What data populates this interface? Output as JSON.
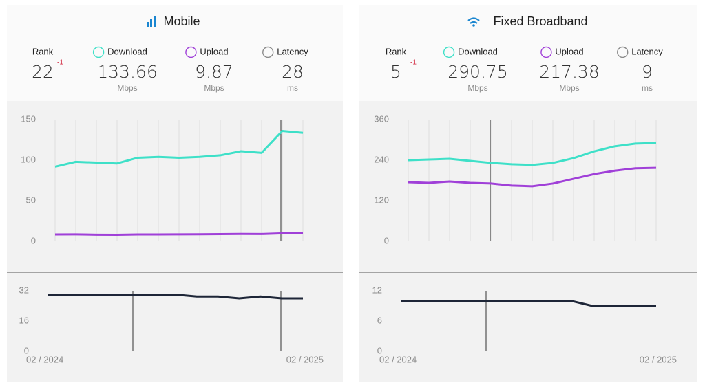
{
  "panels": [
    {
      "title": "Mobile",
      "stats": [
        {
          "label": "Rank",
          "value": 22,
          "change": -1
        },
        {
          "label": "Download",
          "value": 133.66,
          "unit": "Mbps"
        },
        {
          "label": "Upload",
          "value": 9.87,
          "unit": "Mbps"
        },
        {
          "label": "Latency",
          "value": 28,
          "unit": "ms"
        }
      ]
    },
    {
      "title": "Fixed Broadband",
      "stats": [
        {
          "label": "Rank",
          "value": 5,
          "change": -1
        },
        {
          "label": "Download",
          "value": 290.75,
          "unit": "Mbps"
        },
        {
          "label": "Upload",
          "value": 217.38,
          "unit": "Mbps"
        },
        {
          "label": "Latency",
          "value": 9,
          "unit": "ms"
        }
      ]
    }
  ],
  "chart_data": [
    {
      "type": "line",
      "ylim": [
        0,
        150
      ],
      "yticks": [
        0,
        50,
        100,
        150
      ],
      "grid": false,
      "series": [
        {
          "color": "#3ee0c8",
          "values": [
            92,
            98,
            97,
            96,
            103,
            104,
            103,
            104,
            106,
            111,
            109,
            136,
            133.7
          ]
        },
        {
          "color": "#a040d8",
          "values": [
            8.5,
            8.6,
            8.2,
            8,
            8.5,
            8.5,
            8.6,
            8.7,
            8.9,
            9.1,
            9,
            9.9,
            9.9
          ]
        }
      ]
    },
    {
      "type": "line",
      "ylim": [
        0,
        32
      ],
      "yticks": [
        0,
        16,
        32
      ],
      "grid": false,
      "categories": [
        "02 / 2024",
        null,
        null,
        null,
        null,
        null,
        null,
        null,
        null,
        null,
        null,
        null,
        "02 / 2025"
      ],
      "series": [
        {
          "color": "#1e2638",
          "values": [
            30,
            30,
            30,
            30,
            30,
            30,
            30,
            29,
            29,
            28,
            29,
            28,
            28
          ]
        }
      ]
    },
    {
      "type": "line",
      "ylim": [
        0,
        360
      ],
      "yticks": [
        0,
        120,
        240,
        360
      ],
      "grid": false,
      "series": [
        {
          "color": "#3ee0c8",
          "values": [
            240,
            242,
            244,
            238,
            232,
            228,
            226,
            232,
            246,
            266,
            281,
            289,
            290.8
          ]
        },
        {
          "color": "#a040d8",
          "values": [
            175,
            173,
            177,
            173,
            171,
            165,
            163,
            171,
            185,
            199,
            209,
            216,
            217.4
          ]
        }
      ]
    },
    {
      "type": "line",
      "ylim": [
        0,
        12
      ],
      "yticks": [
        0,
        6,
        12
      ],
      "grid": false,
      "categories": [
        "02 / 2024",
        null,
        null,
        null,
        null,
        null,
        null,
        null,
        null,
        null,
        null,
        null,
        "02 / 2025"
      ],
      "series": [
        {
          "color": "#1e2638",
          "values": [
            10,
            10,
            10,
            10,
            10,
            10,
            10,
            10,
            10,
            9,
            9,
            9,
            9
          ]
        }
      ]
    }
  ]
}
